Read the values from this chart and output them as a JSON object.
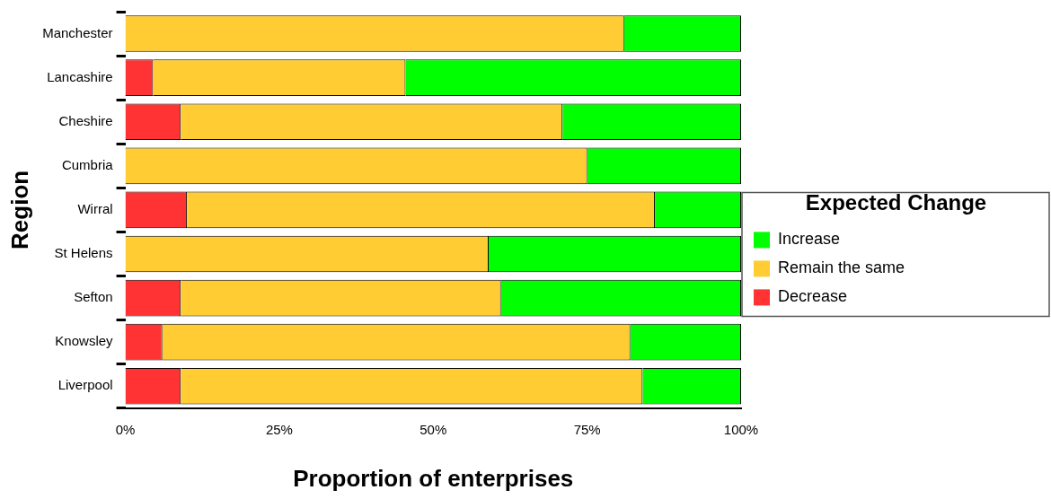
{
  "chart_data": {
    "type": "bar",
    "orientation": "horizontal",
    "stacked": true,
    "xlabel": "Proportion of enterprises",
    "ylabel": "Region",
    "legend_title": "Expected Change",
    "legend": "right",
    "categories": [
      "Manchester",
      "Lancashire",
      "Cheshire",
      "Cumbria",
      "Wirral",
      "St Helens",
      "Sefton",
      "Knowsley",
      "Liverpool"
    ],
    "series": [
      {
        "name": "Decrease",
        "color": "#ff3333",
        "values": [
          0,
          4.5,
          9,
          0,
          10,
          0,
          9,
          6,
          9
        ]
      },
      {
        "name": "Remain the same",
        "color": "#ffcc33",
        "values": [
          81,
          41,
          62,
          75,
          76,
          59,
          52,
          76,
          75
        ]
      },
      {
        "name": "Increase",
        "color": "#00ff00",
        "values": [
          19,
          54.5,
          29,
          25,
          14,
          41,
          39,
          18,
          16
        ]
      }
    ],
    "xlim": [
      0,
      100
    ],
    "xticks": [
      {
        "value": 0,
        "label": "0%"
      },
      {
        "value": 25,
        "label": "25%"
      },
      {
        "value": 50,
        "label": "50%"
      },
      {
        "value": 75,
        "label": "75%"
      },
      {
        "value": 100,
        "label": "100%"
      }
    ],
    "grid": false
  }
}
